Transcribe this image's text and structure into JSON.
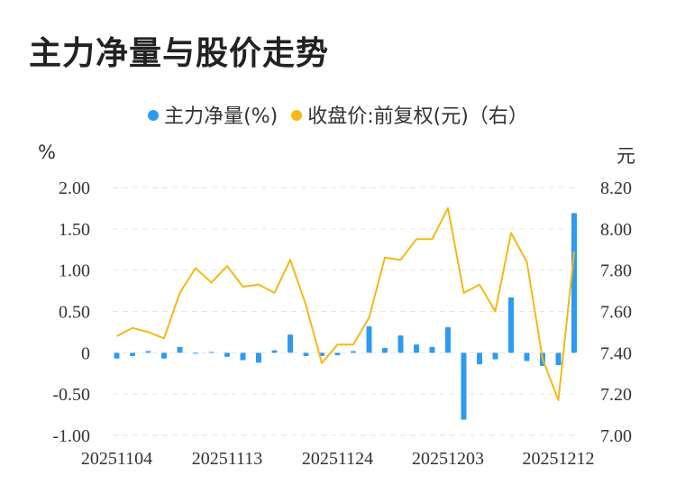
{
  "title": "主力净量与股价走势",
  "legend": [
    {
      "label": "主力净量(%)",
      "color": "#2e9bf0"
    },
    {
      "label": "收盘价:前复权(元)（右）",
      "color": "#f5b814"
    }
  ],
  "units": {
    "left": "%",
    "right": "元"
  },
  "chart_data": {
    "type": "bar+line",
    "left_axis": {
      "min": -1.0,
      "max": 2.0,
      "ticks": [
        "2.00",
        "1.50",
        "1.00",
        "0.50",
        "0",
        "-0.50",
        "-1.00"
      ]
    },
    "right_axis": {
      "min": 7.0,
      "max": 8.2,
      "ticks": [
        "8.20",
        "8.00",
        "7.80",
        "7.60",
        "7.40",
        "7.20",
        "7.00"
      ]
    },
    "x_tick_labels": [
      "20251104",
      "20251113",
      "20251124",
      "20251203",
      "20251212"
    ],
    "x_tick_indices": [
      0,
      7,
      14,
      21,
      28
    ],
    "n_points": 30,
    "series": [
      {
        "name": "主力净量(%)",
        "type": "bar",
        "axis": "left",
        "values": [
          -0.07,
          -0.04,
          0.02,
          -0.07,
          0.07,
          -0.01,
          0.01,
          -0.05,
          -0.09,
          -0.12,
          0.03,
          0.22,
          -0.04,
          -0.04,
          -0.03,
          0.02,
          0.32,
          0.06,
          0.21,
          0.1,
          0.07,
          0.31,
          -0.81,
          -0.14,
          -0.08,
          0.67,
          -0.1,
          -0.16,
          -0.15,
          1.69
        ]
      },
      {
        "name": "收盘价:前复权(元)（右）",
        "type": "line",
        "axis": "right",
        "values": [
          7.48,
          7.52,
          7.5,
          7.47,
          7.69,
          7.81,
          7.74,
          7.82,
          7.72,
          7.73,
          7.69,
          7.85,
          7.63,
          7.35,
          7.44,
          7.44,
          7.57,
          7.86,
          7.85,
          7.95,
          7.95,
          8.1,
          7.69,
          7.73,
          7.6,
          7.98,
          7.84,
          7.37,
          7.17,
          7.89
        ]
      }
    ],
    "grid": true
  }
}
